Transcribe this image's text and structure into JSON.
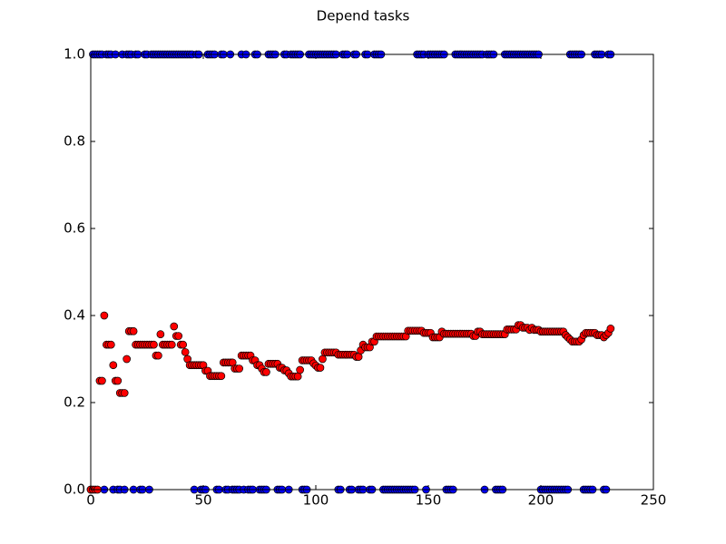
{
  "chart_data": {
    "type": "scatter",
    "title": "Depend tasks",
    "x": [
      0,
      1,
      2,
      3,
      4,
      5,
      6,
      7,
      8,
      9,
      10,
      11,
      12,
      13,
      14,
      15,
      16,
      17,
      18,
      19,
      20,
      21,
      22,
      23,
      24,
      25,
      26,
      27,
      28,
      29,
      30,
      31,
      32,
      33,
      34,
      35,
      36,
      37,
      38,
      39,
      40,
      41,
      42,
      43,
      44,
      45,
      46,
      47,
      48,
      49,
      50,
      51,
      52,
      53,
      54,
      55,
      56,
      57,
      58,
      59,
      60,
      61,
      62,
      63,
      64,
      65,
      66,
      67,
      68,
      69,
      70,
      71,
      72,
      73,
      74,
      75,
      76,
      77,
      78,
      79,
      80,
      81,
      82,
      83,
      84,
      85,
      86,
      87,
      88,
      89,
      90,
      91,
      92,
      93,
      94,
      95,
      96,
      97,
      98,
      99,
      100,
      101,
      102,
      103,
      104,
      105,
      106,
      107,
      108,
      109,
      110,
      111,
      112,
      113,
      114,
      115,
      116,
      117,
      118,
      119,
      120,
      121,
      122,
      123,
      124,
      125,
      126,
      127,
      128,
      129,
      130,
      131,
      132,
      133,
      134,
      135,
      136,
      137,
      138,
      139,
      140,
      141,
      142,
      143,
      144,
      145,
      146,
      147,
      148,
      149,
      150,
      151,
      152,
      153,
      154,
      155,
      156,
      157,
      158,
      159,
      160,
      161,
      162,
      163,
      164,
      165,
      166,
      167,
      168,
      169,
      170,
      171,
      172,
      173,
      174,
      175,
      176,
      177,
      178,
      179,
      180,
      181,
      182,
      183,
      184,
      185,
      186,
      187,
      188,
      189,
      190,
      191,
      192,
      193,
      194,
      195,
      196,
      197,
      198,
      199,
      200,
      201,
      202,
      203,
      204,
      205,
      206,
      207,
      208,
      209,
      210,
      211,
      212,
      213,
      214,
      215,
      216,
      217,
      218,
      219,
      220,
      221,
      222,
      223,
      224,
      225,
      226,
      227,
      228,
      229,
      230,
      231
    ],
    "series": [
      {
        "color": "#0000ff",
        "marker": "circle",
        "values": [
          0,
          1,
          1,
          1,
          1,
          1,
          0,
          1,
          1,
          1,
          0,
          1,
          0,
          0,
          1,
          0,
          1,
          1,
          1,
          0,
          1,
          1,
          0,
          0,
          1,
          1,
          0,
          1,
          1,
          1,
          1,
          1,
          1,
          1,
          1,
          1,
          1,
          1,
          1,
          1,
          1,
          1,
          1,
          1,
          1,
          1,
          0,
          1,
          1,
          0,
          0,
          0,
          1,
          1,
          1,
          1,
          0,
          0,
          1,
          1,
          0,
          0,
          1,
          0,
          0,
          0,
          0,
          1,
          0,
          1,
          0,
          0,
          0,
          1,
          1,
          0,
          0,
          0,
          0,
          1,
          1,
          1,
          1,
          0,
          0,
          0,
          1,
          1,
          0,
          1,
          1,
          1,
          1,
          1,
          0,
          0,
          0,
          1,
          1,
          1,
          1,
          1,
          1,
          1,
          1,
          1,
          1,
          1,
          1,
          1,
          0,
          0,
          1,
          1,
          1,
          0,
          0,
          1,
          1,
          0,
          0,
          0,
          1,
          1,
          0,
          0,
          1,
          1,
          1,
          1,
          0,
          0,
          0,
          0,
          0,
          0,
          0,
          0,
          0,
          0,
          0,
          0,
          0,
          0,
          0,
          1,
          1,
          1,
          1,
          0,
          1,
          1,
          1,
          1,
          1,
          1,
          1,
          1,
          0,
          0,
          0,
          0,
          1,
          1,
          1,
          1,
          1,
          1,
          1,
          1,
          1,
          1,
          1,
          1,
          1,
          0,
          1,
          1,
          1,
          1,
          0,
          0,
          0,
          0,
          1,
          1,
          1,
          1,
          1,
          1,
          1,
          1,
          1,
          1,
          1,
          1,
          1,
          1,
          1,
          1,
          0,
          0,
          0,
          0,
          0,
          0,
          0,
          0,
          0,
          0,
          0,
          0,
          0,
          1,
          1,
          1,
          1,
          1,
          1,
          0,
          0,
          0,
          0,
          0,
          1,
          1,
          1,
          1,
          0,
          0,
          1,
          1
        ]
      },
      {
        "color": "#ff0000",
        "marker": "circle",
        "values": [
          0,
          0,
          0,
          0,
          0.25,
          0.25,
          0.4,
          0.333,
          0.333,
          0.333,
          0.286,
          0.25,
          0.25,
          0.222,
          0.222,
          0.222,
          0.3,
          0.364,
          0.364,
          0.364,
          0.333,
          0.333,
          0.333,
          0.333,
          0.333,
          0.333,
          0.333,
          0.333,
          0.333,
          0.308,
          0.308,
          0.357,
          0.333,
          0.333,
          0.333,
          0.333,
          0.333,
          0.375,
          0.353,
          0.353,
          0.333,
          0.333,
          0.316,
          0.3,
          0.286,
          0.286,
          0.286,
          0.286,
          0.286,
          0.286,
          0.286,
          0.273,
          0.273,
          0.261,
          0.261,
          0.261,
          0.261,
          0.261,
          0.261,
          0.292,
          0.292,
          0.292,
          0.292,
          0.292,
          0.278,
          0.278,
          0.278,
          0.308,
          0.308,
          0.308,
          0.308,
          0.308,
          0.297,
          0.297,
          0.286,
          0.286,
          0.278,
          0.27,
          0.27,
          0.289,
          0.289,
          0.289,
          0.289,
          0.289,
          0.28,
          0.28,
          0.274,
          0.274,
          0.267,
          0.26,
          0.26,
          0.26,
          0.26,
          0.275,
          0.297,
          0.297,
          0.297,
          0.297,
          0.297,
          0.29,
          0.285,
          0.28,
          0.28,
          0.3,
          0.315,
          0.315,
          0.315,
          0.315,
          0.315,
          0.315,
          0.31,
          0.31,
          0.31,
          0.31,
          0.31,
          0.31,
          0.31,
          0.31,
          0.305,
          0.305,
          0.32,
          0.333,
          0.327,
          0.327,
          0.327,
          0.34,
          0.34,
          0.352,
          0.352,
          0.352,
          0.352,
          0.352,
          0.352,
          0.352,
          0.352,
          0.352,
          0.352,
          0.352,
          0.352,
          0.352,
          0.352,
          0.365,
          0.365,
          0.365,
          0.365,
          0.365,
          0.365,
          0.365,
          0.36,
          0.36,
          0.36,
          0.36,
          0.35,
          0.35,
          0.35,
          0.35,
          0.363,
          0.358,
          0.358,
          0.358,
          0.358,
          0.358,
          0.358,
          0.358,
          0.358,
          0.358,
          0.358,
          0.358,
          0.358,
          0.358,
          0.353,
          0.353,
          0.363,
          0.363,
          0.357,
          0.357,
          0.357,
          0.357,
          0.357,
          0.357,
          0.357,
          0.357,
          0.357,
          0.357,
          0.357,
          0.368,
          0.368,
          0.368,
          0.368,
          0.368,
          0.378,
          0.378,
          0.372,
          0.372,
          0.372,
          0.367,
          0.372,
          0.367,
          0.367,
          0.367,
          0.363,
          0.363,
          0.363,
          0.363,
          0.363,
          0.363,
          0.363,
          0.363,
          0.363,
          0.363,
          0.363,
          0.355,
          0.35,
          0.345,
          0.34,
          0.34,
          0.34,
          0.34,
          0.345,
          0.355,
          0.36,
          0.36,
          0.36,
          0.36,
          0.36,
          0.355,
          0.355,
          0.355,
          0.35,
          0.355,
          0.36,
          0.37
        ]
      }
    ],
    "xlim": [
      0,
      250
    ],
    "xticks": [
      0,
      50,
      100,
      150,
      200,
      250
    ],
    "ylim": [
      0,
      1
    ],
    "yticks": [
      {
        "value": 0,
        "label": "0.0"
      },
      0.2,
      0.4,
      0.6,
      0.8,
      {
        "value": 1,
        "label": "1.0"
      }
    ],
    "grid": false
  }
}
